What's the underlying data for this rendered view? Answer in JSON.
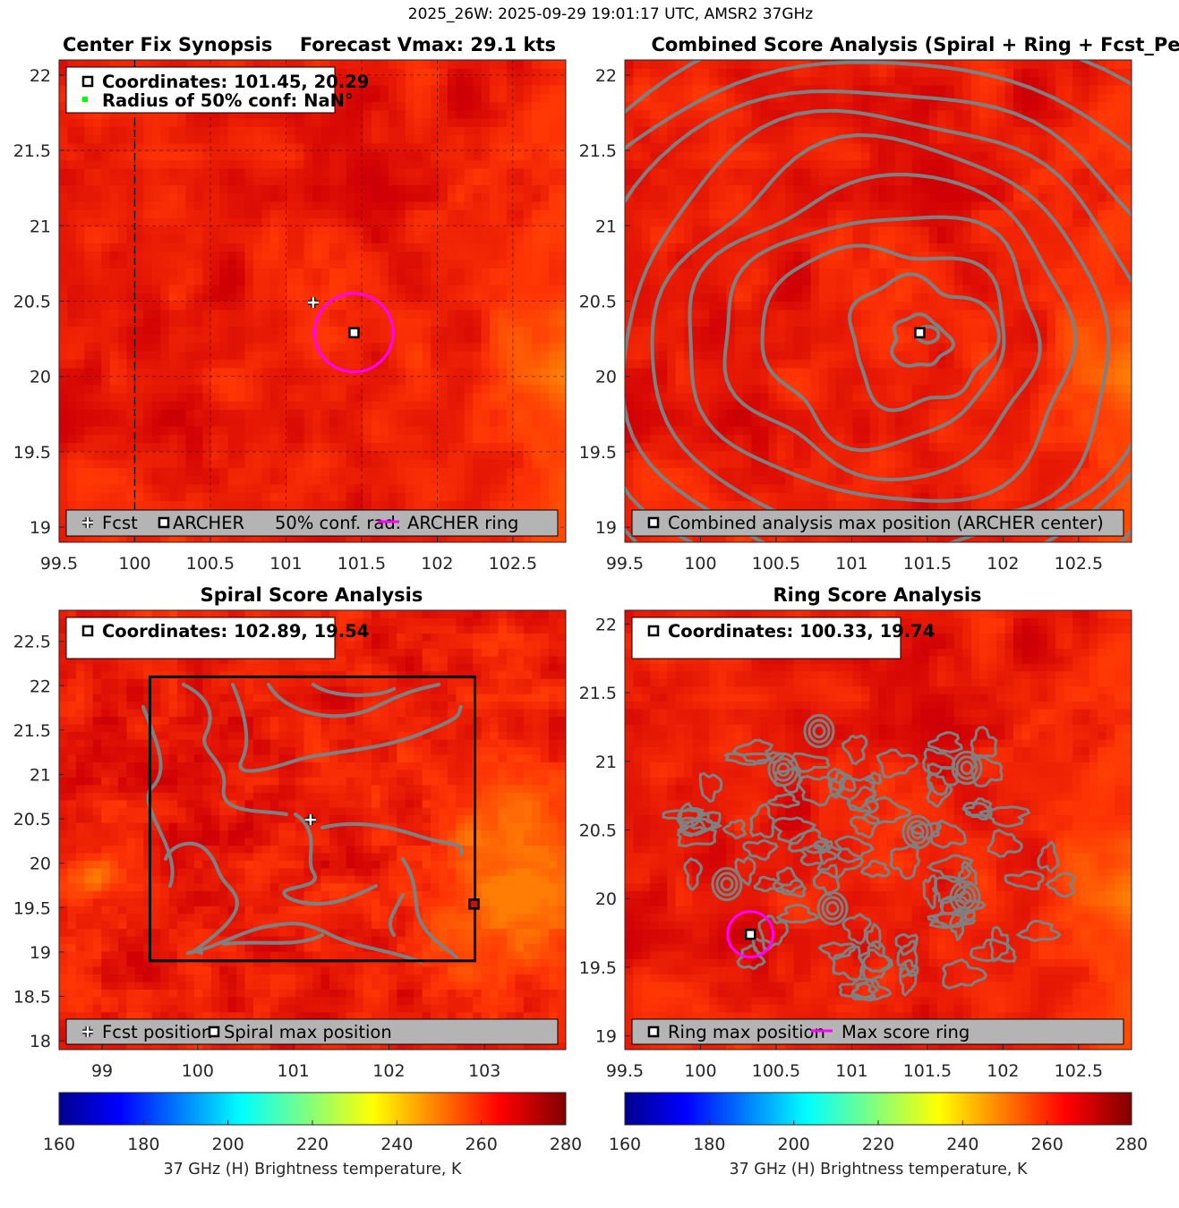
{
  "suptitle": "2025_26W: 2025-09-29 19:01:17 UTC, AMSR2 37GHz",
  "colors": {
    "background_field": "#b81a0f",
    "contour": "#808080",
    "ring": "#ff00ff",
    "legend_bg": "#b4b4b4",
    "conf_marker": "#00ff00"
  },
  "chart_data": [
    {
      "id": "center_fix",
      "type": "heatmap",
      "title_left": "Center Fix Synopsis",
      "title_right": "Forecast Vmax: 29.1 kts",
      "xlim": [
        99.5,
        102.85
      ],
      "ylim": [
        18.9,
        22.1
      ],
      "xticks": [
        "99.5",
        "100",
        "100.5",
        "101",
        "101.5",
        "102",
        "102.5"
      ],
      "yticks": [
        "19",
        "19.5",
        "20",
        "20.5",
        "21",
        "21.5",
        "22"
      ],
      "grid": true,
      "fcst_position": {
        "lon": 101.18,
        "lat": 20.49
      },
      "archer_position": {
        "lon": 101.45,
        "lat": 20.29
      },
      "ring_radius_deg": 0.26,
      "info_lines": [
        "Coordinates: 101.45, 20.29",
        "Radius of 50% conf: NaN°"
      ],
      "legend": [
        "Fcst",
        "ARCHER",
        "50% conf. rad.",
        "ARCHER ring"
      ]
    },
    {
      "id": "combined",
      "type": "heatmap",
      "title": "Combined Score Analysis (Spiral + Ring + Fcst_Pe",
      "xlim": [
        99.5,
        102.85
      ],
      "ylim": [
        18.9,
        22.1
      ],
      "xticks": [
        "99.5",
        "100",
        "100.5",
        "101",
        "101.5",
        "102",
        "102.5"
      ],
      "yticks": [
        "19",
        "19.5",
        "20",
        "20.5",
        "21",
        "21.5",
        "22"
      ],
      "max_position": {
        "lon": 101.45,
        "lat": 20.29
      },
      "legend": [
        "Combined analysis max position (ARCHER center)"
      ]
    },
    {
      "id": "spiral",
      "type": "heatmap",
      "title": "Spiral Score Analysis",
      "xlim": [
        98.55,
        103.85
      ],
      "ylim": [
        17.9,
        22.85
      ],
      "xticks": [
        "99",
        "100",
        "101",
        "102",
        "103"
      ],
      "yticks": [
        "18",
        "18.5",
        "19",
        "19.5",
        "20",
        "20.5",
        "21",
        "21.5",
        "22",
        "22.5"
      ],
      "search_box": {
        "lon_min": 99.5,
        "lon_max": 102.9,
        "lat_min": 18.9,
        "lat_max": 22.1
      },
      "fcst_position": {
        "lon": 101.18,
        "lat": 20.49
      },
      "max_position": {
        "lon": 102.89,
        "lat": 19.54
      },
      "info_lines": [
        "Coordinates: 102.89, 19.54"
      ],
      "legend": [
        "Fcst position",
        "Spiral max position"
      ]
    },
    {
      "id": "ring",
      "type": "heatmap",
      "title": "Ring Score Analysis",
      "xlim": [
        99.5,
        102.85
      ],
      "ylim": [
        18.9,
        22.1
      ],
      "xticks": [
        "99.5",
        "100",
        "100.5",
        "101",
        "101.5",
        "102",
        "102.5"
      ],
      "yticks": [
        "19",
        "19.5",
        "20",
        "20.5",
        "21",
        "21.5",
        "22"
      ],
      "max_position": {
        "lon": 100.33,
        "lat": 19.74
      },
      "ring_radius_deg": 0.15,
      "info_lines": [
        "Coordinates: 100.33, 19.74"
      ],
      "legend": [
        "Ring max position",
        "Max score ring"
      ]
    }
  ],
  "colorbars": [
    {
      "range": [
        160,
        280
      ],
      "ticks": [
        "160",
        "180",
        "200",
        "220",
        "240",
        "260",
        "280"
      ],
      "label": "37 GHz (H) Brightness temperature, K"
    },
    {
      "range": [
        160,
        280
      ],
      "ticks": [
        "160",
        "180",
        "200",
        "220",
        "240",
        "260",
        "280"
      ],
      "label": "37 GHz (H) Brightness temperature, K"
    }
  ]
}
